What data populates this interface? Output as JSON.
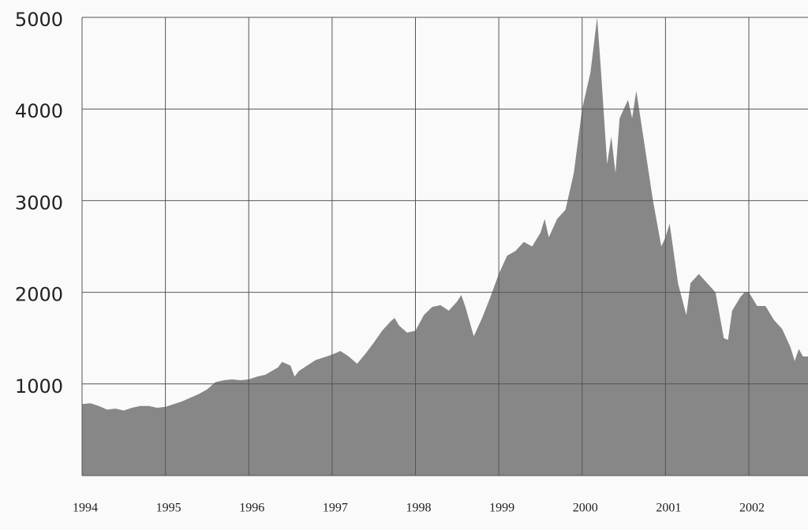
{
  "chart_data": {
    "type": "area",
    "color": "#878787",
    "grid": true,
    "xlim": [
      1994,
      2002.71
    ],
    "ylim": [
      0,
      5000
    ],
    "xticks": [
      1994,
      1995,
      1996,
      1997,
      1998,
      1999,
      2000,
      2001,
      2002
    ],
    "yticks": [
      1000,
      2000,
      3000,
      4000,
      5000
    ],
    "x": [
      1994.0,
      1994.1,
      1994.2,
      1994.3,
      1994.4,
      1994.5,
      1994.6,
      1994.7,
      1994.8,
      1994.9,
      1995.0,
      1995.2,
      1995.4,
      1995.5,
      1995.6,
      1995.7,
      1995.8,
      1995.9,
      1996.0,
      1996.1,
      1996.2,
      1996.35,
      1996.4,
      1996.5,
      1996.55,
      1996.6,
      1996.7,
      1996.8,
      1996.9,
      1997.0,
      1997.1,
      1997.2,
      1997.3,
      1997.4,
      1997.5,
      1997.6,
      1997.7,
      1997.75,
      1997.8,
      1997.9,
      1998.0,
      1998.1,
      1998.2,
      1998.3,
      1998.4,
      1998.5,
      1998.55,
      1998.6,
      1998.7,
      1998.8,
      1998.9,
      1999.0,
      1999.1,
      1999.2,
      1999.3,
      1999.4,
      1999.5,
      1999.55,
      1999.6,
      1999.7,
      1999.8,
      1999.9,
      2000.0,
      2000.1,
      2000.18,
      2000.22,
      2000.3,
      2000.35,
      2000.4,
      2000.45,
      2000.55,
      2000.6,
      2000.65,
      2000.75,
      2000.85,
      2000.95,
      2001.0,
      2001.05,
      2001.15,
      2001.25,
      2001.3,
      2001.4,
      2001.5,
      2001.6,
      2001.7,
      2001.75,
      2001.8,
      2001.9,
      2001.95,
      2002.0,
      2002.1,
      2002.2,
      2002.3,
      2002.4,
      2002.5,
      2002.55,
      2002.6,
      2002.65,
      2002.71
    ],
    "values": [
      780,
      790,
      760,
      720,
      730,
      710,
      740,
      760,
      760,
      740,
      750,
      810,
      890,
      940,
      1020,
      1040,
      1050,
      1040,
      1050,
      1080,
      1100,
      1180,
      1240,
      1200,
      1080,
      1140,
      1200,
      1260,
      1290,
      1320,
      1360,
      1300,
      1220,
      1330,
      1450,
      1580,
      1680,
      1720,
      1640,
      1560,
      1580,
      1750,
      1840,
      1860,
      1800,
      1900,
      1970,
      1840,
      1520,
      1720,
      1950,
      2200,
      2400,
      2450,
      2550,
      2500,
      2650,
      2800,
      2600,
      2800,
      2900,
      3300,
      4000,
      4400,
      5000,
      4500,
      3400,
      3700,
      3300,
      3900,
      4100,
      3900,
      4200,
      3600,
      3000,
      2500,
      2600,
      2750,
      2100,
      1750,
      2100,
      2200,
      2100,
      2000,
      1500,
      1480,
      1800,
      1950,
      2000,
      2000,
      1850,
      1850,
      1700,
      1600,
      1400,
      1250,
      1380,
      1300,
      1300
    ]
  }
}
